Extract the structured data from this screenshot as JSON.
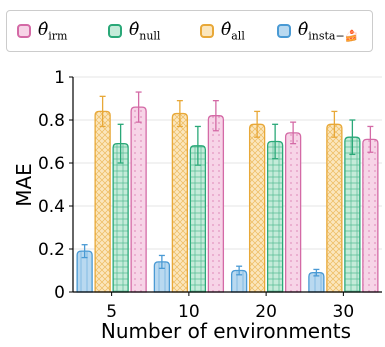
{
  "chart_data": {
    "type": "bar",
    "xlabel": "Number of environments",
    "ylabel": "MAE",
    "categories": [
      "5",
      "10",
      "20",
      "30"
    ],
    "ylim": [
      0,
      1
    ],
    "yticks": [
      "0",
      "0.2",
      "0.4",
      "0.6",
      "0.8",
      "1"
    ],
    "grid": "horizontal",
    "legend_position": "top",
    "series": [
      {
        "name": "θ̂insta-",
        "legend_symbol": "θ̂",
        "legend_sub": "insta−🍰",
        "color": "#4a9ad4",
        "fill": "#b9d9f0",
        "pattern": "lines",
        "values": [
          0.19,
          0.14,
          0.1,
          0.09
        ],
        "errors": [
          0.03,
          0.03,
          0.02,
          0.015
        ]
      },
      {
        "name": "θ̂all",
        "legend_symbol": "θ̂",
        "legend_sub": "all",
        "color": "#e8a838",
        "fill": "#fbe6bd",
        "pattern": "cross",
        "values": [
          0.84,
          0.83,
          0.78,
          0.78
        ],
        "errors": [
          0.07,
          0.06,
          0.06,
          0.06
        ]
      },
      {
        "name": "θ̂null",
        "legend_symbol": "θ̂",
        "legend_sub": "null",
        "color": "#2aa878",
        "fill": "#c4ebd9",
        "pattern": "grid",
        "values": [
          0.69,
          0.68,
          0.7,
          0.72
        ],
        "errors": [
          0.09,
          0.09,
          0.08,
          0.08
        ]
      },
      {
        "name": "θ̂irm",
        "legend_symbol": "θ̂",
        "legend_sub": "irm",
        "color": "#d46aa6",
        "fill": "#f7d4e7",
        "pattern": "dots",
        "values": [
          0.86,
          0.82,
          0.74,
          0.71
        ],
        "errors": [
          0.07,
          0.07,
          0.05,
          0.06
        ]
      }
    ],
    "legend_order": [
      3,
      2,
      1,
      0
    ]
  }
}
